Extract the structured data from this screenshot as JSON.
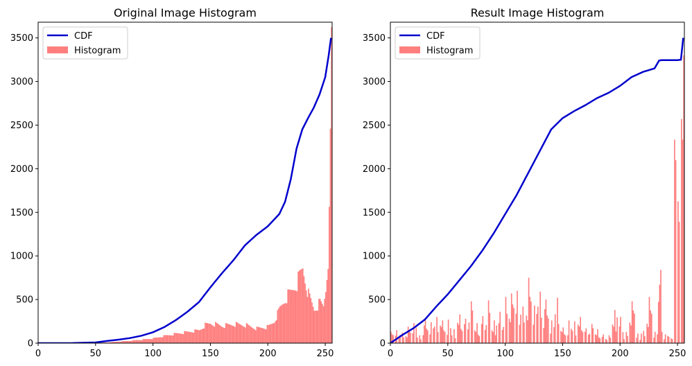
{
  "chart_data": [
    {
      "type": "bar",
      "title": "Original Image Histogram",
      "xlabel": "",
      "ylabel": "",
      "xlim": [
        0,
        256
      ],
      "ylim": [
        0,
        3680
      ],
      "xticks": [
        0,
        50,
        100,
        150,
        200,
        250
      ],
      "yticks": [
        0,
        500,
        1000,
        1500,
        2000,
        2500,
        3000,
        3500
      ],
      "legend_position": "top-left",
      "legend": [
        "CDF",
        "Histogram"
      ],
      "colors": {
        "cdf": "#0000cc",
        "histogram": "#ff7f7f"
      },
      "cdf": {
        "name": "CDF",
        "x": [
          0,
          30,
          50,
          60,
          70,
          80,
          90,
          100,
          110,
          120,
          130,
          140,
          150,
          160,
          170,
          180,
          190,
          200,
          210,
          215,
          220,
          225,
          230,
          235,
          240,
          245,
          250,
          253,
          255
        ],
        "y": [
          0,
          1,
          8,
          25,
          40,
          58,
          85,
          125,
          185,
          265,
          360,
          470,
          640,
          800,
          950,
          1120,
          1240,
          1340,
          1480,
          1620,
          1880,
          2230,
          2450,
          2580,
          2700,
          2850,
          3050,
          3300,
          3500
        ]
      },
      "histogram": {
        "name": "Histogram",
        "x": [
          50,
          60,
          70,
          80,
          90,
          100,
          110,
          120,
          130,
          140,
          145,
          150,
          160,
          170,
          180,
          190,
          200,
          205,
          210,
          215,
          220,
          225,
          230,
          235,
          240,
          245,
          248,
          250,
          252,
          253,
          254,
          255
        ],
        "y": [
          3,
          8,
          18,
          28,
          40,
          55,
          85,
          110,
          130,
          150,
          210,
          230,
          200,
          220,
          210,
          170,
          190,
          250,
          400,
          520,
          600,
          700,
          870,
          560,
          390,
          470,
          430,
          640,
          1000,
          1400,
          2270,
          3450
        ]
      }
    },
    {
      "type": "bar",
      "title": "Result Image Histogram",
      "xlabel": "",
      "ylabel": "",
      "xlim": [
        0,
        256
      ],
      "ylim": [
        0,
        3680
      ],
      "xticks": [
        0,
        50,
        100,
        150,
        200,
        250
      ],
      "yticks": [
        0,
        500,
        1000,
        1500,
        2000,
        2500,
        3000,
        3500
      ],
      "legend_position": "top-left",
      "legend": [
        "CDF",
        "Histogram"
      ],
      "colors": {
        "cdf": "#0000cc",
        "histogram": "#ff7f7f"
      },
      "cdf": {
        "name": "CDF",
        "x": [
          0,
          10,
          20,
          30,
          40,
          50,
          60,
          70,
          80,
          90,
          100,
          110,
          120,
          130,
          140,
          150,
          160,
          170,
          180,
          190,
          200,
          210,
          220,
          230,
          234,
          236,
          250,
          253,
          255
        ],
        "y": [
          0,
          90,
          170,
          270,
          420,
          560,
          720,
          880,
          1060,
          1260,
          1480,
          1700,
          1950,
          2200,
          2450,
          2580,
          2660,
          2730,
          2810,
          2870,
          2950,
          3050,
          3110,
          3150,
          3240,
          3245,
          3245,
          3250,
          3500
        ]
      },
      "histogram": {
        "name": "Histogram",
        "x": [
          0,
          5,
          10,
          15,
          20,
          25,
          30,
          35,
          40,
          45,
          50,
          55,
          60,
          65,
          70,
          75,
          80,
          85,
          90,
          95,
          100,
          105,
          110,
          115,
          120,
          125,
          130,
          135,
          140,
          145,
          150,
          155,
          160,
          165,
          170,
          175,
          180,
          185,
          190,
          195,
          200,
          205,
          210,
          215,
          220,
          225,
          230,
          234,
          235,
          236,
          255
        ],
        "y": [
          130,
          150,
          120,
          190,
          230,
          90,
          260,
          240,
          300,
          260,
          270,
          160,
          330,
          280,
          480,
          230,
          310,
          490,
          260,
          360,
          530,
          570,
          600,
          420,
          750,
          430,
          590,
          500,
          260,
          520,
          180,
          260,
          250,
          300,
          170,
          220,
          160,
          100,
          90,
          380,
          300,
          130,
          480,
          110,
          140,
          530,
          130,
          670,
          840,
          130,
          3300
        ]
      }
    }
  ]
}
